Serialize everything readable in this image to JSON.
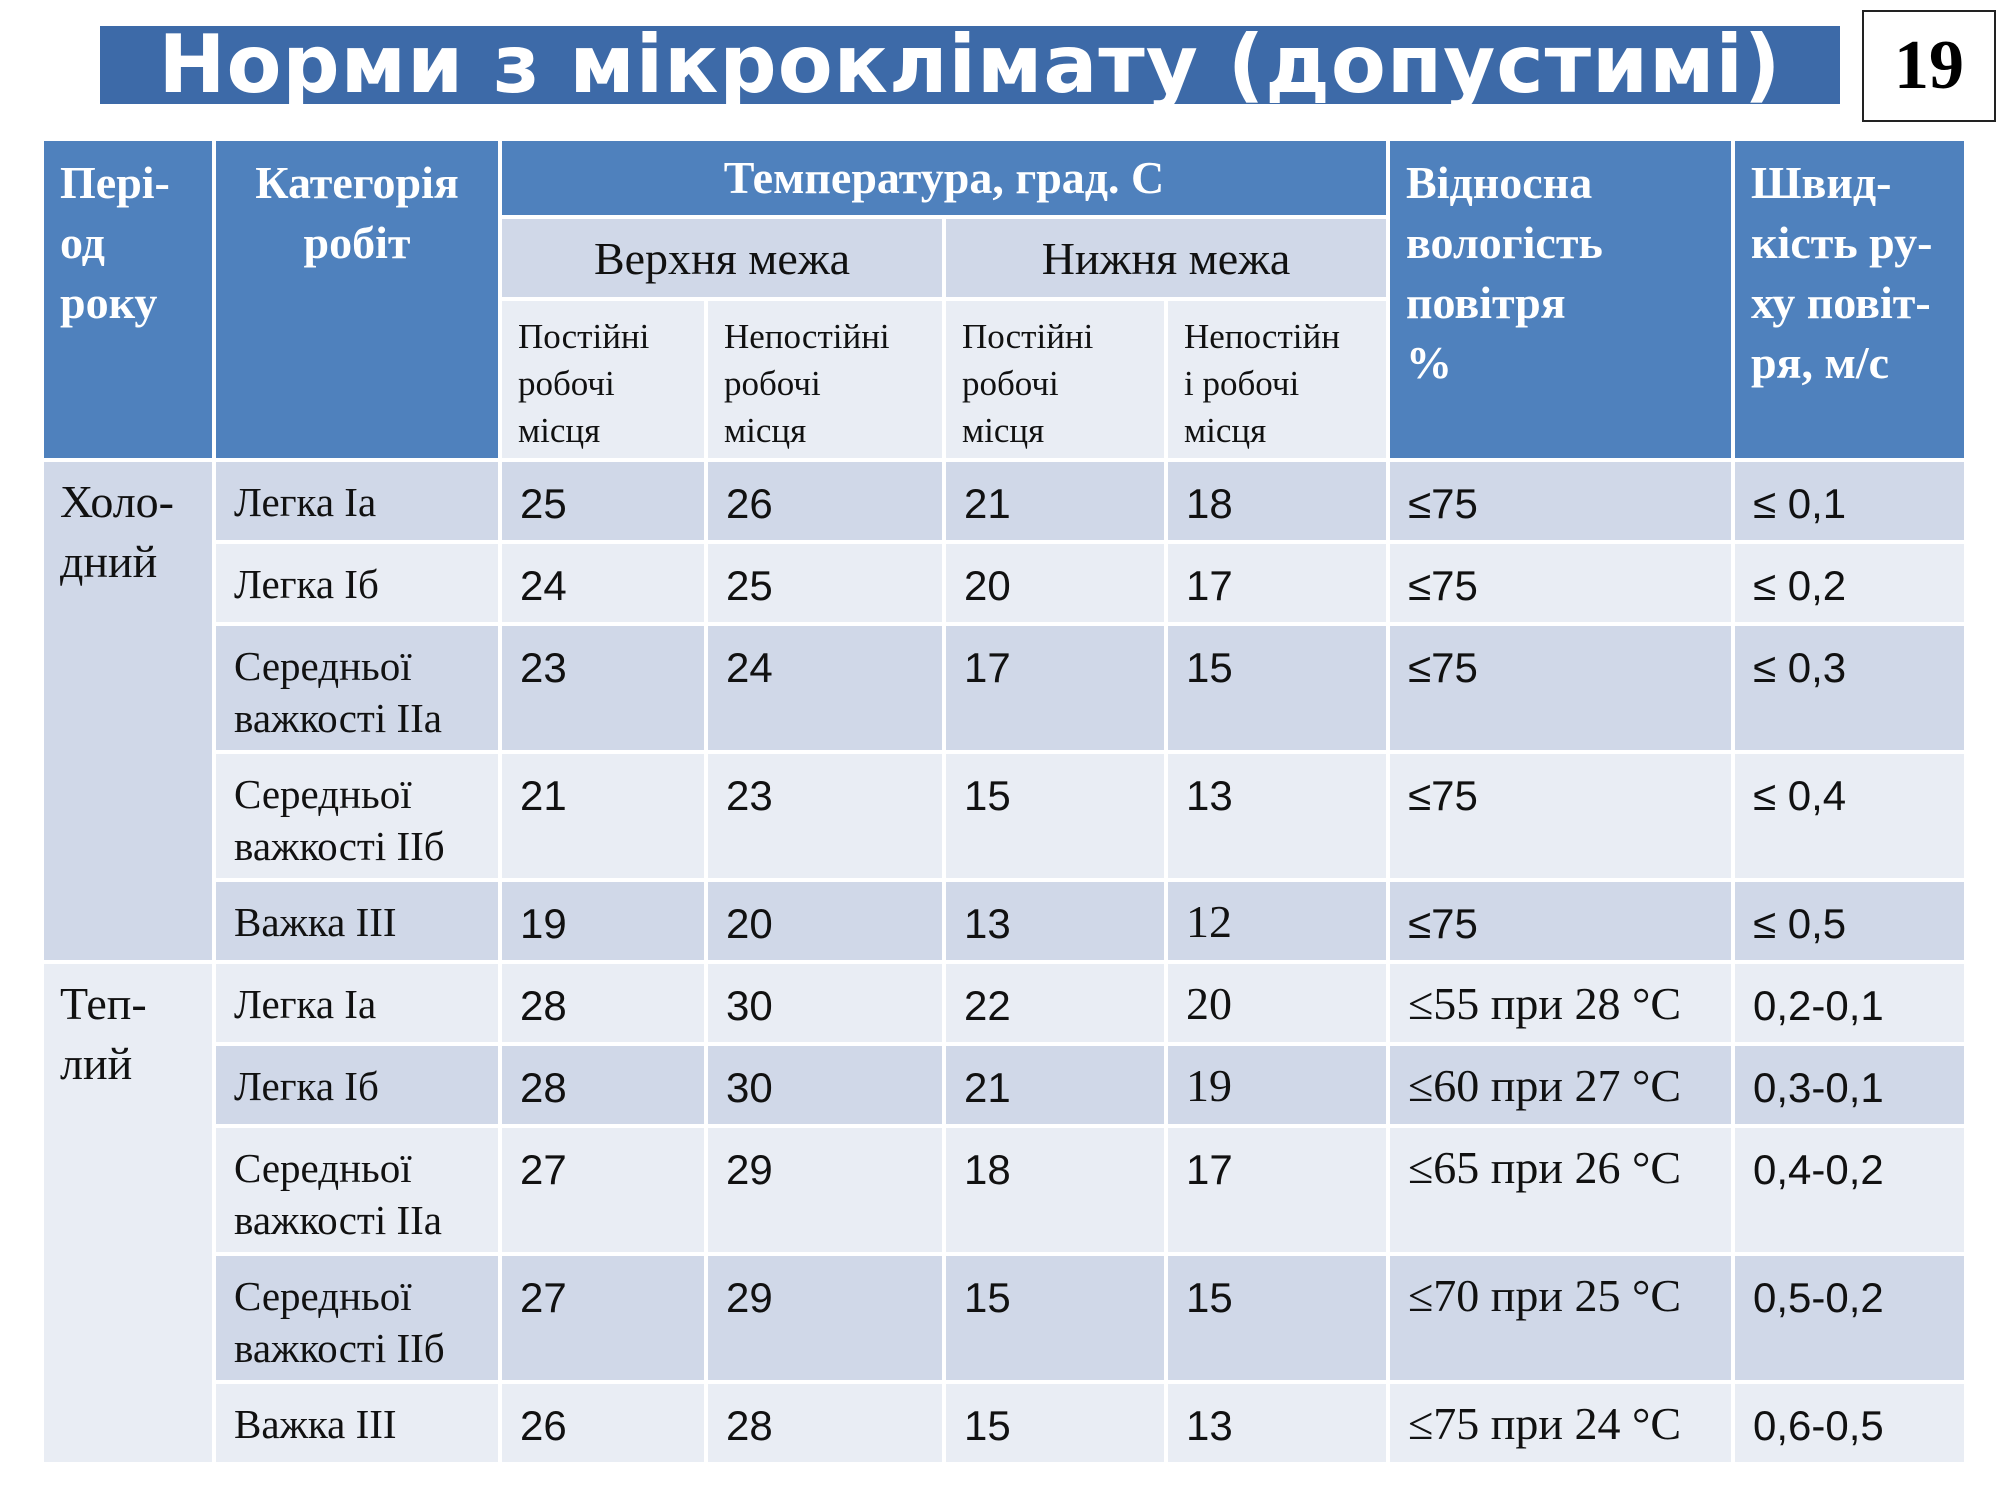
{
  "title": "Норми з мікроклімату (допустимі)",
  "slide_number": "19",
  "header": {
    "period": "Пері-\nод\nроку",
    "category": "Категорія\nробіт",
    "temperature": "Температура, град. С",
    "upper": "Верхня межа",
    "lower": "Нижня межа",
    "permanent": "Постійні\nробочі\nмісця",
    "nonpermanent": "Непостійні\nробочі\nмісця",
    "permanent_lower": "Постійні\nробочі\nмісця",
    "nonpermanent_lower": "Непостійн\nі робочі\nмісця",
    "humidity": "Відносна\nвологість\nповітря\n%",
    "speed": "Швид-\nкість ру-\nху повіт-\nря, м/с"
  },
  "periods": [
    {
      "name": "Холо-\nдний",
      "rows": [
        {
          "category": "Легка Іа",
          "up_perm": "25",
          "up_nonperm": "26",
          "low_perm": "21",
          "low_nonperm": "18",
          "humidity": "≤75",
          "speed": "≤ 0,1"
        },
        {
          "category": "Легка Іб",
          "up_perm": "24",
          "up_nonperm": "25",
          "low_perm": "20",
          "low_nonperm": "17",
          "humidity": "≤75",
          "speed": "≤ 0,2"
        },
        {
          "category": "Середньої\nважкості ІІа",
          "up_perm": "23",
          "up_nonperm": "24",
          "low_perm": "17",
          "low_nonperm": "15",
          "humidity": "≤75",
          "speed": "≤ 0,3"
        },
        {
          "category": "Середньої\nважкості ІІб",
          "up_perm": "21",
          "up_nonperm": "23",
          "low_perm": "15",
          "low_nonperm": "13",
          "humidity": "≤75",
          "speed": "≤ 0,4"
        },
        {
          "category": "Важка ІІІ",
          "up_perm": "19",
          "up_nonperm": "20",
          "low_perm": "13",
          "low_nonperm": "12",
          "humidity": "≤75",
          "speed": "≤ 0,5"
        }
      ]
    },
    {
      "name": "Теп-\nлий",
      "rows": [
        {
          "category": "Легка Іа",
          "up_perm": "28",
          "up_nonperm": "30",
          "low_perm": "22",
          "low_nonperm": "20",
          "humidity": "≤55 при 28 °С",
          "speed": "0,2-0,1"
        },
        {
          "category": "Легка Іб",
          "up_perm": "28",
          "up_nonperm": "30",
          "low_perm": "21",
          "low_nonperm": "19",
          "humidity": "≤60 при 27 °С",
          "speed": "0,3-0,1"
        },
        {
          "category": "Середньої\nважкості ІІа",
          "up_perm": "27",
          "up_nonperm": "29",
          "low_perm": "18",
          "low_nonperm": "17",
          "humidity": "≤65 при 26 °С",
          "speed": "0,4-0,2"
        },
        {
          "category": "Середньої\nважкості ІІб",
          "up_perm": "27",
          "up_nonperm": "29",
          "low_perm": "15",
          "low_nonperm": "15",
          "humidity": "≤70 при 25 °С",
          "speed": "0,5-0,2"
        },
        {
          "category": "Важка ІІІ",
          "up_perm": "26",
          "up_nonperm": "28",
          "low_perm": "15",
          "low_nonperm": "13",
          "humidity": "≤75 при 24 °С",
          "speed": "0,6-0,5"
        }
      ]
    }
  ]
}
